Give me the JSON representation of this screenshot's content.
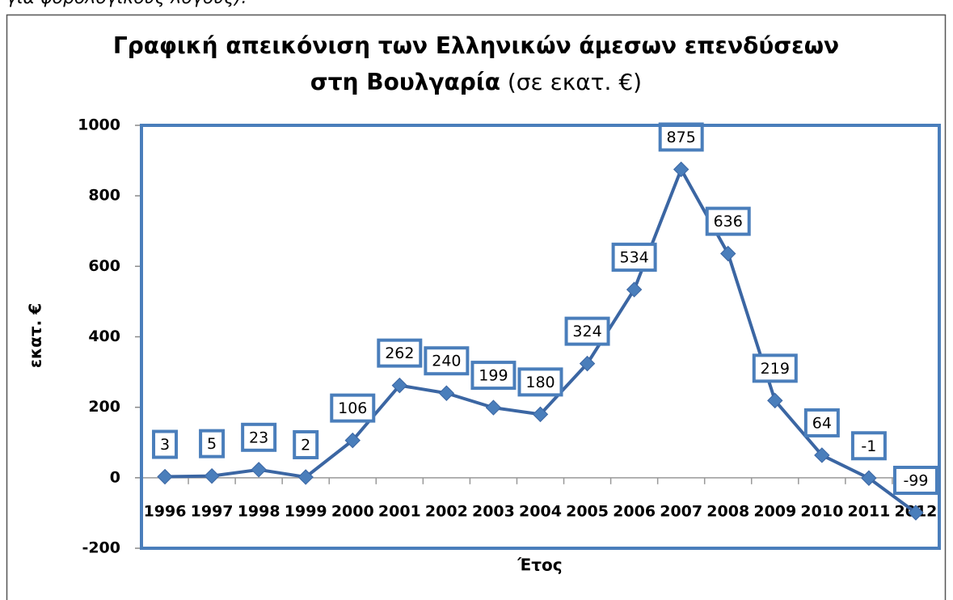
{
  "page_text_fragment": "για φορολογικούς λόγους).",
  "chart_data": {
    "type": "line",
    "title": "Γραφική απεικόνιση των Ελληνικών άμεσων επενδύσεων",
    "title_line2": "στη Βουλγαρία",
    "title_unit": "(σε εκατ. €)",
    "x_label": "Έτος",
    "y_label": "εκατ. €",
    "categories": [
      "1996",
      "1997",
      "1998",
      "1999",
      "2000",
      "2001",
      "2002",
      "2003",
      "2004",
      "2005",
      "2006",
      "2007",
      "2008",
      "2009",
      "2010",
      "2011",
      "2012"
    ],
    "values": [
      3,
      5,
      23,
      2,
      106,
      262,
      240,
      199,
      180,
      324,
      534,
      875,
      636,
      219,
      64,
      -1,
      -99
    ],
    "color": "#3b66a3",
    "marker_color": "#4a7ebb",
    "ylim": [
      -200,
      1000
    ],
    "yticks": [
      -200,
      0,
      200,
      400,
      600,
      800,
      1000
    ],
    "grid": false
  }
}
